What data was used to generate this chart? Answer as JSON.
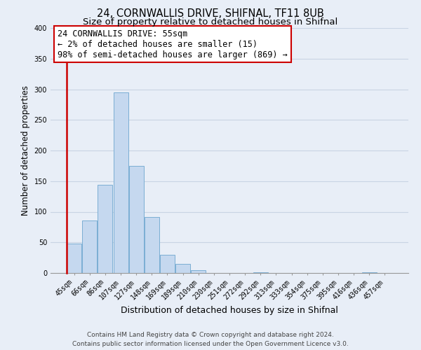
{
  "title": "24, CORNWALLIS DRIVE, SHIFNAL, TF11 8UB",
  "subtitle": "Size of property relative to detached houses in Shifnal",
  "xlabel": "Distribution of detached houses by size in Shifnal",
  "ylabel": "Number of detached properties",
  "bin_labels": [
    "45sqm",
    "66sqm",
    "86sqm",
    "107sqm",
    "127sqm",
    "148sqm",
    "169sqm",
    "189sqm",
    "210sqm",
    "230sqm",
    "251sqm",
    "272sqm",
    "292sqm",
    "313sqm",
    "333sqm",
    "354sqm",
    "375sqm",
    "395sqm",
    "416sqm",
    "436sqm",
    "457sqm"
  ],
  "bar_heights": [
    48,
    86,
    144,
    295,
    175,
    91,
    30,
    15,
    5,
    0,
    0,
    0,
    1,
    0,
    0,
    0,
    0,
    0,
    0,
    1,
    0
  ],
  "bar_color": "#c5d8ef",
  "bar_edge_color": "#7baed4",
  "highlight_bar_color": "#cc0000",
  "annotation_line1": "24 CORNWALLIS DRIVE: 55sqm",
  "annotation_line2": "← 2% of detached houses are smaller (15)",
  "annotation_line3": "98% of semi-detached houses are larger (869) →",
  "annotation_box_facecolor": "#ffffff",
  "annotation_box_edgecolor": "#cc0000",
  "ylim": [
    0,
    400
  ],
  "yticks": [
    0,
    50,
    100,
    150,
    200,
    250,
    300,
    350,
    400
  ],
  "footer_line1": "Contains HM Land Registry data © Crown copyright and database right 2024.",
  "footer_line2": "Contains public sector information licensed under the Open Government Licence v3.0.",
  "background_color": "#e8eef7",
  "plot_background_color": "#e8eef7",
  "grid_color": "#c8d4e4",
  "title_fontsize": 10.5,
  "subtitle_fontsize": 9.5,
  "xlabel_fontsize": 9,
  "ylabel_fontsize": 8.5,
  "tick_fontsize": 7,
  "annotation_fontsize": 8.5,
  "footer_fontsize": 6.5
}
